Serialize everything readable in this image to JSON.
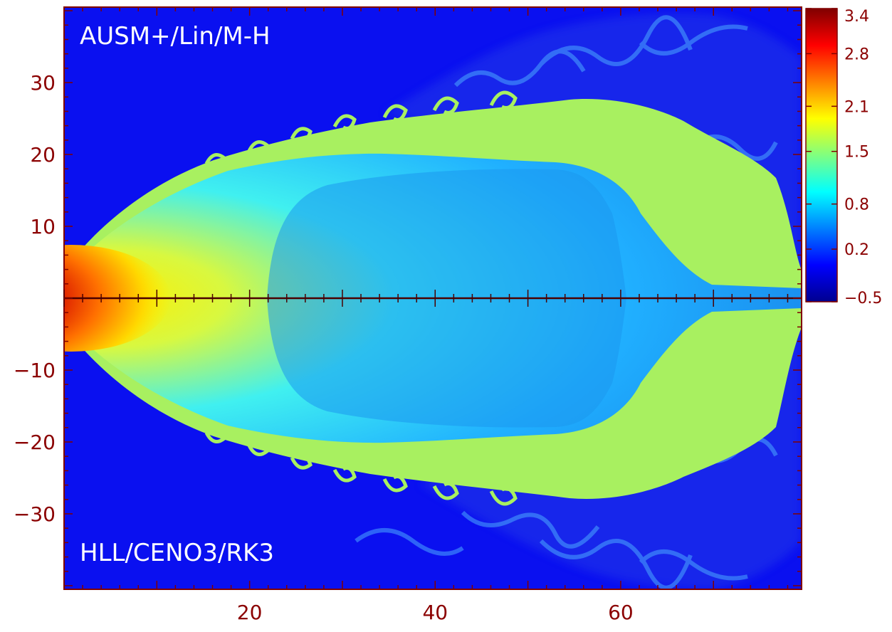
{
  "chart_data": {
    "type": "heatmap",
    "panel_labels": {
      "top": "AUSM+/Lin/M-H",
      "bottom": "HLL/CENO3/RK3"
    },
    "x_ticks": [
      {
        "value": 20,
        "label": "20"
      },
      {
        "value": 40,
        "label": "40"
      },
      {
        "value": 60,
        "label": "60"
      }
    ],
    "y_ticks": [
      {
        "value": 30,
        "label": "30"
      },
      {
        "value": 20,
        "label": "20"
      },
      {
        "value": 10,
        "label": "10"
      },
      {
        "value": -10,
        "label": "−10"
      },
      {
        "value": -20,
        "label": "−20"
      },
      {
        "value": -30,
        "label": "−30"
      }
    ],
    "xlim": [
      0,
      79.5
    ],
    "ylim": [
      -40.5,
      40.5
    ],
    "colorbar": {
      "range": [
        -0.5,
        3.4
      ],
      "ticks": [
        {
          "value": 3.4,
          "label": "3.4"
        },
        {
          "value": 2.8,
          "label": "2.8"
        },
        {
          "value": 2.1,
          "label": "2.1"
        },
        {
          "value": 1.5,
          "label": "1.5"
        },
        {
          "value": 0.8,
          "label": "0.8"
        },
        {
          "value": 0.2,
          "label": "0.2"
        },
        {
          "value": -0.5,
          "label": "−0.5"
        }
      ],
      "colormap": [
        "#00008f",
        "#0000ff",
        "#0080ff",
        "#00ffff",
        "#80ff80",
        "#ffff00",
        "#ff8000",
        "#ff0000",
        "#800000"
      ]
    },
    "colors": {
      "ambient": "#0a10f0",
      "cocoon": "#28b8ff",
      "cocoon_edge": "#a8f060",
      "jet_core": "#9a0000",
      "axis": "#800000",
      "label": "#ffffff",
      "tick_label": "#8b0000"
    }
  }
}
